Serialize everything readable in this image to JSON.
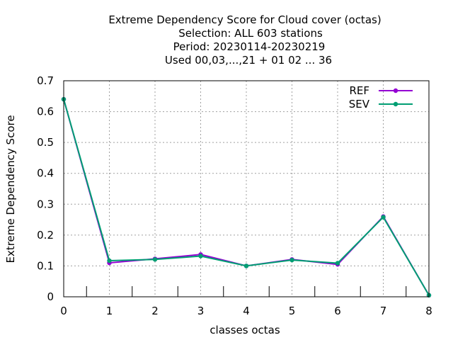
{
  "chart_data": {
    "type": "line",
    "title_lines": [
      "Extreme Dependency Score  for Cloud cover (octas)",
      "Selection: ALL    603 stations",
      "Period: 20230114-20230219",
      "Used  00,03,...,21  + 01 02 ... 36"
    ],
    "xlabel": "classes octas",
    "ylabel": "Extreme Dependency Score",
    "x": [
      0,
      1,
      2,
      3,
      4,
      5,
      6,
      7,
      8
    ],
    "xlim": [
      0,
      8
    ],
    "ylim": [
      0,
      0.7
    ],
    "xticks": [
      "0",
      "1",
      "2",
      "3",
      "4",
      "5",
      "6",
      "7",
      "8"
    ],
    "yticks": [
      "0",
      "0.1",
      "0.2",
      "0.3",
      "0.4",
      "0.5",
      "0.6",
      "0.7"
    ],
    "ytick_values": [
      0,
      0.1,
      0.2,
      0.3,
      0.4,
      0.5,
      0.6,
      0.7
    ],
    "grid": true,
    "legend_position": "top-right",
    "series": [
      {
        "name": "REF",
        "color": "#9400d3",
        "values": [
          0.64,
          0.11,
          0.123,
          0.137,
          0.1,
          0.121,
          0.105,
          0.26,
          0.005
        ]
      },
      {
        "name": "SEV",
        "color": "#009e73",
        "values": [
          0.64,
          0.117,
          0.121,
          0.132,
          0.1,
          0.119,
          0.109,
          0.258,
          0.005
        ]
      }
    ]
  }
}
